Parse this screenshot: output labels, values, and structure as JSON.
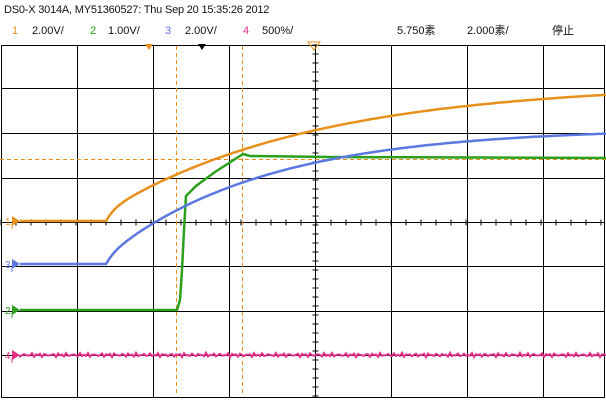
{
  "header": {
    "title": "DS0-X 3014A, MY51360527: Thu Sep 20 15:35:26 2012"
  },
  "channels": [
    {
      "num": "1",
      "scale": "2.00V/",
      "color": "#e8901c"
    },
    {
      "num": "2",
      "scale": "1.00V/",
      "color": "#2ca01c"
    },
    {
      "num": "3",
      "scale": "2.00V/",
      "color": "#5a78e0"
    },
    {
      "num": "4",
      "scale": "500%/",
      "color": "#e0308a"
    }
  ],
  "timebase": {
    "delay": "5.750素",
    "scale": "2.000素/",
    "run_state": "停止"
  },
  "markers": {
    "ch1": "1",
    "ch2": "2",
    "ch3": "3",
    "ch4": "4"
  },
  "colors": {
    "grid": "#000000",
    "cursor": "#e8901c",
    "trigger": "#e8901c"
  }
}
